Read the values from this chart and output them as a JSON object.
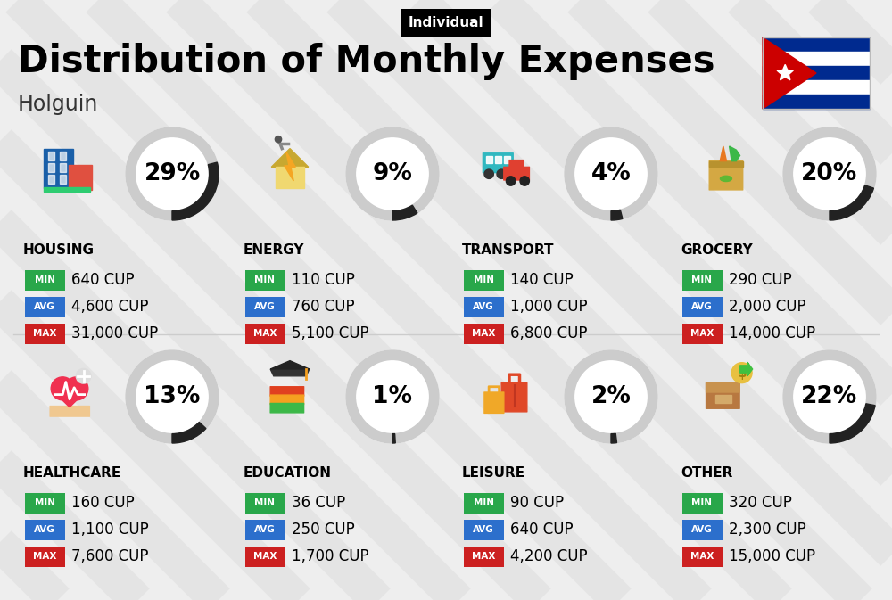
{
  "title": "Distribution of Monthly Expenses",
  "subtitle": "Individual",
  "city": "Holguin",
  "bg_color": "#eeeeee",
  "categories": [
    {
      "name": "HOUSING",
      "pct": 29,
      "icon": "housing",
      "min": "640 CUP",
      "avg": "4,600 CUP",
      "max": "31,000 CUP",
      "row": 0,
      "col": 0
    },
    {
      "name": "ENERGY",
      "pct": 9,
      "icon": "energy",
      "min": "110 CUP",
      "avg": "760 CUP",
      "max": "5,100 CUP",
      "row": 0,
      "col": 1
    },
    {
      "name": "TRANSPORT",
      "pct": 4,
      "icon": "transport",
      "min": "140 CUP",
      "avg": "1,000 CUP",
      "max": "6,800 CUP",
      "row": 0,
      "col": 2
    },
    {
      "name": "GROCERY",
      "pct": 20,
      "icon": "grocery",
      "min": "290 CUP",
      "avg": "2,000 CUP",
      "max": "14,000 CUP",
      "row": 0,
      "col": 3
    },
    {
      "name": "HEALTHCARE",
      "pct": 13,
      "icon": "healthcare",
      "min": "160 CUP",
      "avg": "1,100 CUP",
      "max": "7,600 CUP",
      "row": 1,
      "col": 0
    },
    {
      "name": "EDUCATION",
      "pct": 1,
      "icon": "education",
      "min": "36 CUP",
      "avg": "250 CUP",
      "max": "1,700 CUP",
      "row": 1,
      "col": 1
    },
    {
      "name": "LEISURE",
      "pct": 2,
      "icon": "leisure",
      "min": "90 CUP",
      "avg": "640 CUP",
      "max": "4,200 CUP",
      "row": 1,
      "col": 2
    },
    {
      "name": "OTHER",
      "pct": 22,
      "icon": "other",
      "min": "320 CUP",
      "avg": "2,300 CUP",
      "max": "15,000 CUP",
      "row": 1,
      "col": 3
    }
  ],
  "color_min": "#29a74a",
  "color_avg": "#2c6fcc",
  "color_max": "#cc2020",
  "title_fontsize": 30,
  "subtitle_fontsize": 11,
  "city_fontsize": 17,
  "cat_fontsize": 11,
  "val_fontsize": 12,
  "pct_fontsize": 19
}
